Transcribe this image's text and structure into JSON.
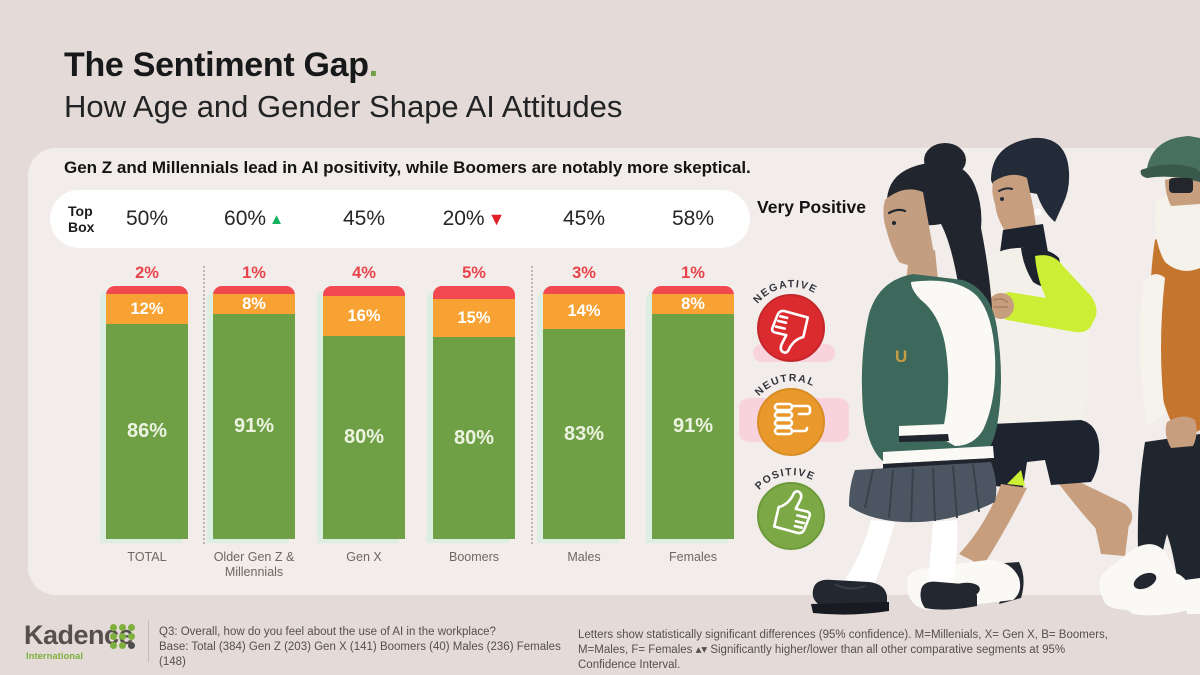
{
  "header": {
    "title": "The Sentiment Gap",
    "title_period": ".",
    "subtitle": "How Age and Gender Shape AI Attitudes",
    "insight": "Gen Z and Millennials lead in AI positivity, while Boomers are notably more skeptical."
  },
  "topbox": {
    "label": "Top Box",
    "right_label": "Very Positive",
    "values": [
      {
        "text": "50%",
        "arrow": null
      },
      {
        "text": "60%",
        "arrow": "up"
      },
      {
        "text": "45%",
        "arrow": null
      },
      {
        "text": "20%",
        "arrow": "down"
      },
      {
        "text": "45%",
        "arrow": null
      },
      {
        "text": "58%",
        "arrow": null
      }
    ]
  },
  "chart_data": {
    "type": "bar",
    "stacked": true,
    "unit": "%",
    "categories": [
      "TOTAL",
      "Older Gen Z & Millennials",
      "Gen X",
      "Boomers",
      "Males",
      "Females"
    ],
    "series": [
      {
        "name": "Negative",
        "color": "#F2484F",
        "values": [
          2,
          1,
          4,
          5,
          3,
          1
        ]
      },
      {
        "name": "Neutral",
        "color": "#F8A233",
        "values": [
          12,
          8,
          16,
          15,
          14,
          8
        ]
      },
      {
        "name": "Positive",
        "color": "#6FA045",
        "values": [
          86,
          91,
          80,
          80,
          83,
          91
        ]
      }
    ],
    "top_box_values": [
      50,
      60,
      45,
      20,
      45,
      58
    ],
    "top_box_arrows": [
      null,
      "up",
      null,
      "down",
      null,
      null
    ],
    "separators_after_categories": [
      "TOTAL",
      "Boomers"
    ],
    "ylim": [
      0,
      100
    ],
    "legend_position": "right"
  },
  "legend": {
    "items": [
      {
        "label": "NEGATIVE",
        "color": "#DC2B2F",
        "icon": "thumbs-down-icon"
      },
      {
        "label": "NEUTRAL",
        "color": "#E9992C",
        "icon": "neutral-fist-icon"
      },
      {
        "label": "POSITIVE",
        "color": "#7CA845",
        "icon": "thumbs-up-icon"
      }
    ]
  },
  "illustration": {
    "jacket_letter": "U"
  },
  "footer": {
    "logo": "Kadence",
    "logo_sub": "International",
    "question": "Q3: Overall, how do you feel about the use of AI in the workplace?",
    "base": "Base: Total (384) Gen Z (203) Gen X (141) Boomers (40) Males (236) Females (148)",
    "note": "Letters show statistically significant differences (95% confidence). M=Millenials, X= Gen X, B= Boomers, M=Males, F= Females  ▴▾ Significantly higher/lower than all other comparative segments at 95% Confidence Interval."
  },
  "colors": {
    "background": "#E4DBD8",
    "card": "#F2EDEA",
    "negative": "#F2484F",
    "neutral": "#F8A233",
    "positive": "#6FA045",
    "arrow_up": "#12B25F",
    "arrow_down": "#E01F26",
    "accent_green": "#7FAF3F"
  }
}
